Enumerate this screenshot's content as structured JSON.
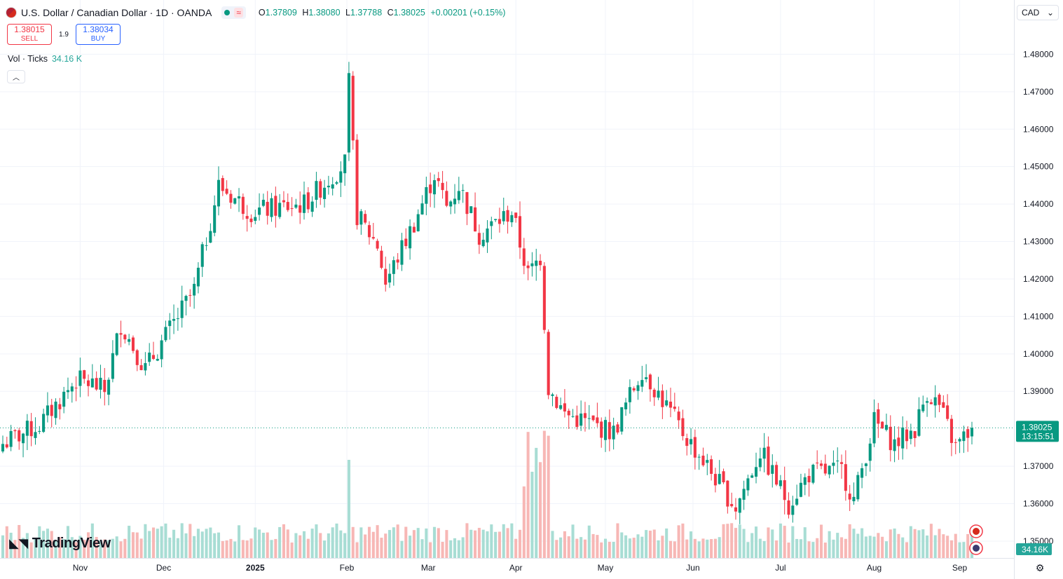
{
  "header": {
    "title": "U.S. Dollar / Canadian Dollar · 1D · OANDA",
    "ohlc": {
      "o_label": "O",
      "o": "1.37809",
      "h_label": "H",
      "h": "1.38080",
      "l_label": "L",
      "l": "1.37788",
      "c_label": "C",
      "c": "1.38025",
      "change": "+0.00201 (+0.15%)"
    },
    "wave_icon": "≈"
  },
  "trade": {
    "sell_price": "1.38015",
    "sell_label": "SELL",
    "spread": "1.9",
    "buy_price": "1.38034",
    "buy_label": "BUY"
  },
  "volume_legend": {
    "label": "Vol · Ticks",
    "value": "34.16 K"
  },
  "currency_selector": {
    "value": "CAD",
    "arrow": "⌄"
  },
  "brand": "TradingView",
  "colors": {
    "up": "#089981",
    "down": "#f23645",
    "vol_up": "#a8ddd4",
    "vol_down": "#f7b7b5",
    "accent": "#26a69a"
  },
  "chart_data": {
    "type": "candlestick",
    "x_labels": [
      {
        "label": "Nov",
        "date": "2024-11-01"
      },
      {
        "label": "Dec",
        "date": "2024-12-01"
      },
      {
        "label": "2025",
        "date": "2025-01-01",
        "bold": true
      },
      {
        "label": "Feb",
        "date": "2025-02-01"
      },
      {
        "label": "Mar",
        "date": "2025-03-01"
      },
      {
        "label": "Apr",
        "date": "2025-04-01"
      },
      {
        "label": "May",
        "date": "2025-05-01"
      },
      {
        "label": "Jun",
        "date": "2025-06-01"
      },
      {
        "label": "Jul",
        "date": "2025-07-01"
      },
      {
        "label": "Aug",
        "date": "2025-08-01"
      },
      {
        "label": "Sep",
        "date": "2025-09-01"
      }
    ],
    "y_ticks": [
      "1.48000",
      "1.47000",
      "1.46000",
      "1.45000",
      "1.44000",
      "1.43000",
      "1.42000",
      "1.41000",
      "1.40000",
      "1.39000",
      "1.37000",
      "1.36000",
      "1.35000"
    ],
    "ylim": [
      1.3455,
      1.487
    ],
    "last_price": "1.38025",
    "last_value": 1.38025,
    "countdown": "13:15:51",
    "volume_last": "34.16K",
    "anchors": [
      {
        "date": "2024-10-07",
        "close": 1.376
      },
      {
        "date": "2024-10-18",
        "close": 1.381
      },
      {
        "date": "2024-10-31",
        "close": 1.393
      },
      {
        "date": "2024-11-06",
        "close": 1.392
      },
      {
        "date": "2024-11-11",
        "close": 1.39
      },
      {
        "date": "2024-11-15",
        "close": 1.408
      },
      {
        "date": "2024-11-25",
        "close": 1.396
      },
      {
        "date": "2024-12-11",
        "close": 1.417
      },
      {
        "date": "2024-12-19",
        "close": 1.445
      },
      {
        "date": "2024-12-31",
        "close": 1.438
      },
      {
        "date": "2025-01-17",
        "close": 1.44
      },
      {
        "date": "2025-01-31",
        "close": 1.451
      },
      {
        "date": "2025-02-03",
        "close": 1.472
      },
      {
        "date": "2025-02-05",
        "close": 1.437
      },
      {
        "date": "2025-02-12",
        "close": 1.429
      },
      {
        "date": "2025-02-14",
        "close": 1.419
      },
      {
        "date": "2025-02-25",
        "close": 1.435
      },
      {
        "date": "2025-03-04",
        "close": 1.448
      },
      {
        "date": "2025-03-07",
        "close": 1.439
      },
      {
        "date": "2025-03-12",
        "close": 1.445
      },
      {
        "date": "2025-03-19",
        "close": 1.432
      },
      {
        "date": "2025-03-31",
        "close": 1.438
      },
      {
        "date": "2025-04-04",
        "close": 1.421
      },
      {
        "date": "2025-04-09",
        "close": 1.426
      },
      {
        "date": "2025-04-11",
        "close": 1.391
      },
      {
        "date": "2025-04-17",
        "close": 1.384
      },
      {
        "date": "2025-05-05",
        "close": 1.379
      },
      {
        "date": "2025-05-14",
        "close": 1.396
      },
      {
        "date": "2025-05-22",
        "close": 1.386
      },
      {
        "date": "2025-05-28",
        "close": 1.379
      },
      {
        "date": "2025-06-05",
        "close": 1.37
      },
      {
        "date": "2025-06-16",
        "close": 1.359
      },
      {
        "date": "2025-06-24",
        "close": 1.374
      },
      {
        "date": "2025-07-03",
        "close": 1.36
      },
      {
        "date": "2025-07-10",
        "close": 1.368
      },
      {
        "date": "2025-07-22",
        "close": 1.369
      },
      {
        "date": "2025-07-25",
        "close": 1.361
      },
      {
        "date": "2025-08-01",
        "close": 1.382
      },
      {
        "date": "2025-08-08",
        "close": 1.376
      },
      {
        "date": "2025-08-15",
        "close": 1.38
      },
      {
        "date": "2025-08-20",
        "close": 1.39
      },
      {
        "date": "2025-08-25",
        "close": 1.386
      },
      {
        "date": "2025-08-29",
        "close": 1.375
      },
      {
        "date": "2025-09-04",
        "close": 1.38025
      }
    ]
  }
}
